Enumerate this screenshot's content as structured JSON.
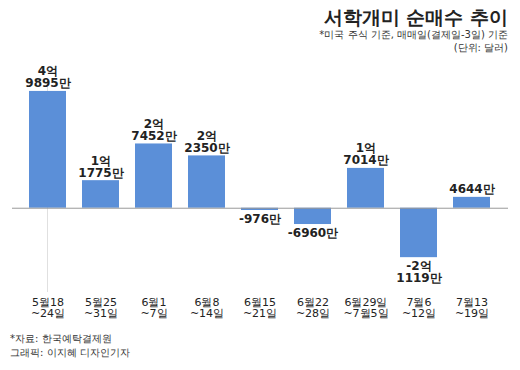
{
  "chart_data": {
    "type": "bar",
    "title": "서학개미 순매수 추이",
    "subtitle": "*미국 주식 기준, 매매일(결제일-3일) 기준",
    "unit": "(단위: 달러)",
    "categories": [
      "5월18~24일",
      "5월25~31일",
      "6월1~7일",
      "6월8~14일",
      "6월15~21일",
      "6월22~28일",
      "6월29일~7월5일",
      "7월6~12일",
      "7월13~19일"
    ],
    "values": [
      498950000,
      117750000,
      274520000,
      223500000,
      -9760000,
      -69600000,
      170140000,
      -211190000,
      46440000
    ],
    "value_labels": [
      "4억 9895만",
      "1억 1775만",
      "2억 7452만",
      "2억 2350만",
      "-976만",
      "-6960만",
      "1억 7014만",
      "-2억 1119만",
      "4644만"
    ],
    "color": "#5b8fd8",
    "ylim": [
      -360000000,
      520000000
    ],
    "data_labels": true,
    "tick_labels": "x",
    "source": "*자료: 한국예탁결제원",
    "credit": "그래픽: 이지혜 디자인기자"
  }
}
